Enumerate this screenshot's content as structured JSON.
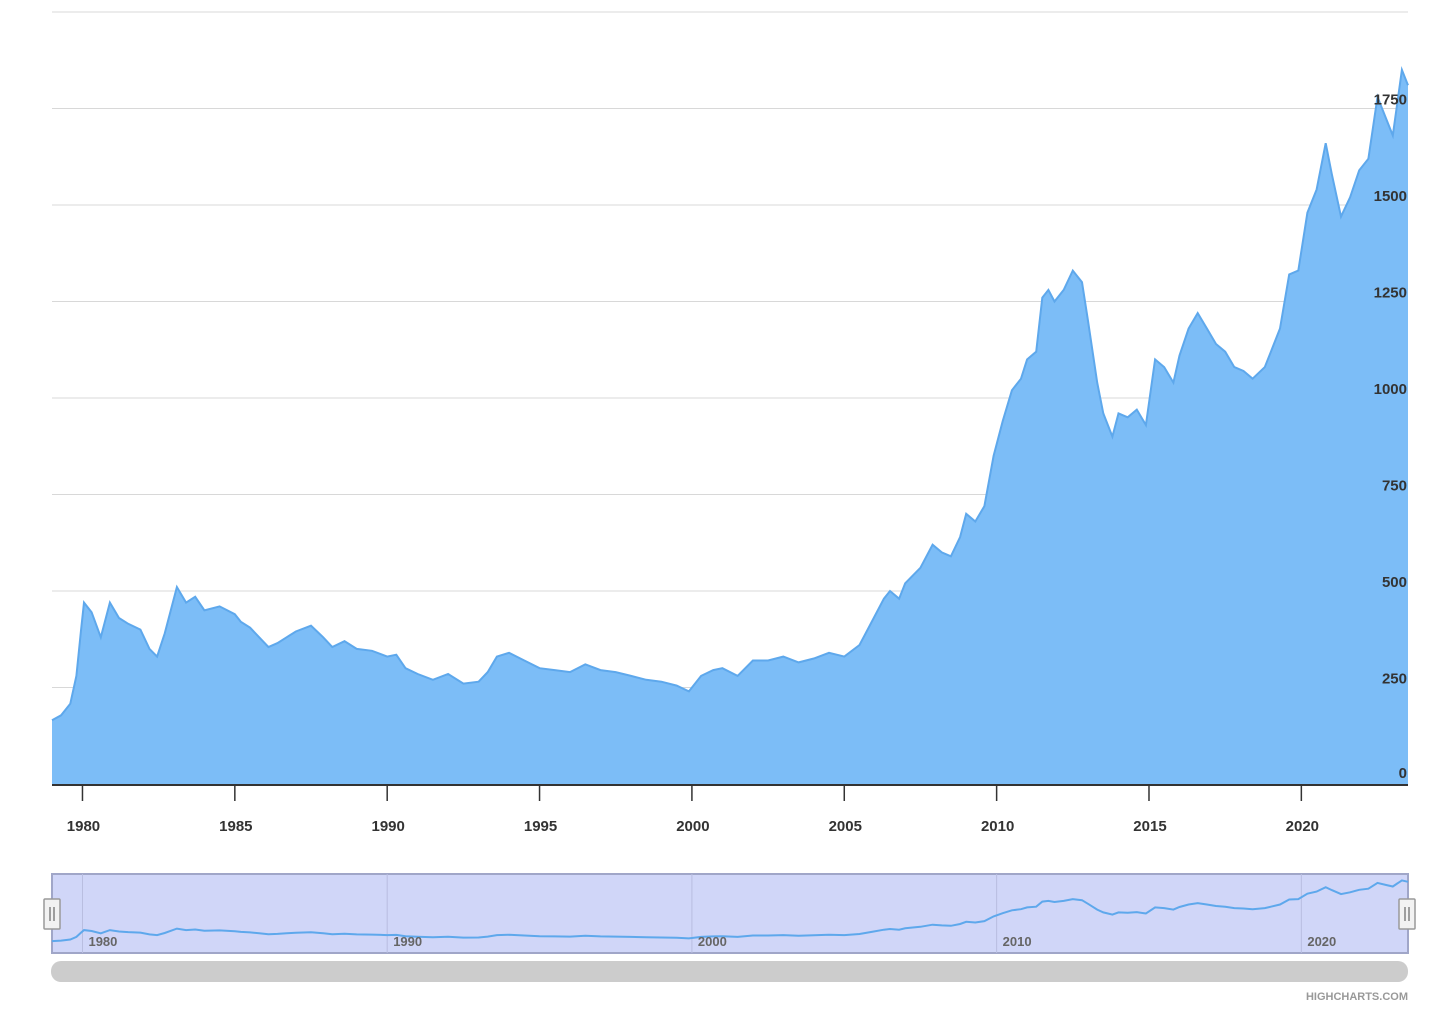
{
  "chart_data": {
    "type": "area",
    "title": "",
    "xlabel": "",
    "ylabel": "",
    "xlim": [
      1979.0,
      2023.5
    ],
    "ylim": [
      0,
      2000
    ],
    "y_ticks": [
      0,
      250,
      500,
      750,
      1000,
      1250,
      1500,
      1750
    ],
    "y_tick_labels": [
      "0",
      "250",
      "500",
      "750",
      "1000",
      "1250",
      "1500",
      "1750"
    ],
    "x_ticks": [
      1980,
      1985,
      1990,
      1995,
      2000,
      2005,
      2010,
      2015,
      2020
    ],
    "x_tick_labels": [
      "1980",
      "1985",
      "1990",
      "1995",
      "2000",
      "2005",
      "2010",
      "2015",
      "2020"
    ],
    "grid": true,
    "legend": "none",
    "series": [
      {
        "x": [
          1979.0,
          1979.3,
          1979.6,
          1979.8,
          1979.95,
          1980.05,
          1980.3,
          1980.6,
          1980.9,
          1981.2,
          1981.5,
          1981.9,
          1982.2,
          1982.45,
          1982.7,
          1982.9,
          1983.1,
          1983.4,
          1983.7,
          1984.0,
          1984.5,
          1985.0,
          1985.2,
          1985.5,
          1985.8,
          1986.1,
          1986.4,
          1986.7,
          1987.0,
          1987.5,
          1987.9,
          1988.2,
          1988.6,
          1989.0,
          1989.5,
          1990.0,
          1990.3,
          1990.6,
          1991.0,
          1991.5,
          1992.0,
          1992.5,
          1993.0,
          1993.3,
          1993.6,
          1994.0,
          1994.5,
          1995.0,
          1995.5,
          1996.0,
          1996.5,
          1997.0,
          1997.5,
          1998.0,
          1998.5,
          1999.0,
          1999.5,
          1999.9,
          2000.3,
          2000.7,
          2001.0,
          2001.5,
          2002.0,
          2002.5,
          2003.0,
          2003.5,
          2004.0,
          2004.5,
          2005.0,
          2005.5,
          2005.9,
          2006.3,
          2006.5,
          2006.8,
          2007.0,
          2007.5,
          2007.9,
          2008.2,
          2008.5,
          2008.8,
          2009.0,
          2009.3,
          2009.6,
          2009.9,
          2010.2,
          2010.5,
          2010.8,
          2011.0,
          2011.3,
          2011.5,
          2011.7,
          2011.9,
          2012.2,
          2012.5,
          2012.8,
          2013.0,
          2013.3,
          2013.5,
          2013.8,
          2014.0,
          2014.3,
          2014.6,
          2014.9,
          2015.2,
          2015.5,
          2015.8,
          2016.0,
          2016.3,
          2016.6,
          2016.9,
          2017.2,
          2017.5,
          2017.8,
          2018.1,
          2018.4,
          2018.8,
          2019.0,
          2019.3,
          2019.6,
          2019.9,
          2020.2,
          2020.5,
          2020.8,
          2021.0,
          2021.3,
          2021.6,
          2021.9,
          2022.2,
          2022.5,
          2022.8,
          2023.0,
          2023.3,
          2023.5
        ],
        "y": [
          165,
          178,
          208,
          280,
          395,
          470,
          445,
          380,
          470,
          430,
          415,
          400,
          350,
          330,
          390,
          450,
          510,
          470,
          485,
          450,
          460,
          440,
          420,
          405,
          380,
          355,
          365,
          380,
          395,
          410,
          380,
          355,
          370,
          350,
          345,
          330,
          335,
          300,
          285,
          270,
          285,
          260,
          265,
          290,
          330,
          340,
          320,
          300,
          295,
          290,
          310,
          295,
          290,
          280,
          270,
          265,
          255,
          240,
          280,
          295,
          300,
          280,
          320,
          320,
          330,
          315,
          325,
          340,
          330,
          360,
          420,
          480,
          500,
          480,
          520,
          560,
          620,
          600,
          590,
          640,
          700,
          680,
          720,
          850,
          940,
          1020,
          1050,
          1100,
          1120,
          1260,
          1280,
          1250,
          1280,
          1330,
          1300,
          1200,
          1040,
          960,
          900,
          960,
          950,
          970,
          930,
          1100,
          1080,
          1040,
          1110,
          1180,
          1220,
          1180,
          1140,
          1120,
          1080,
          1070,
          1050,
          1080,
          1120,
          1180,
          1320,
          1330,
          1480,
          1540,
          1660,
          1580,
          1470,
          1520,
          1590,
          1620,
          1780,
          1720,
          1680,
          1850,
          1810
        ]
      }
    ]
  },
  "navigator": {
    "tick_labels": [
      "1980",
      "1990",
      "2000",
      "2010",
      "2020"
    ]
  },
  "credits": "HIGHCHARTS.COM",
  "colors": {
    "area_fill": "#7cbdf7",
    "line": "#5ea8ec",
    "grid": "#d8d8d8",
    "nav_mask": "#d0d6f8",
    "nav_border": "#a0a6c8",
    "scrollbar": "#cccccc"
  }
}
